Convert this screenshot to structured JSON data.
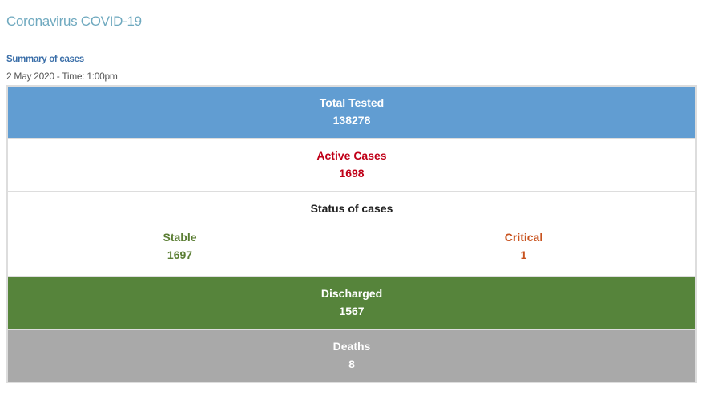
{
  "header": {
    "title": "Coronavirus COVID-19",
    "subtitle": "Summary of cases",
    "date": "2 May 2020 - Time: 1:00pm"
  },
  "summary": {
    "total_tested": {
      "label": "Total Tested",
      "value": "138278",
      "color": "#619dd2"
    },
    "active": {
      "label": "Active Cases",
      "value": "1698",
      "color": "#c00018"
    },
    "status": {
      "label": "Status of cases",
      "stable": {
        "label": "Stable",
        "value": "1697",
        "color": "#5b7e34"
      },
      "critical": {
        "label": "Critical",
        "value": "1",
        "color": "#c8531f"
      }
    },
    "discharged": {
      "label": "Discharged",
      "value": "1567",
      "color": "#56843b"
    },
    "deaths": {
      "label": "Deaths",
      "value": "8",
      "color": "#a9a9a9"
    }
  }
}
